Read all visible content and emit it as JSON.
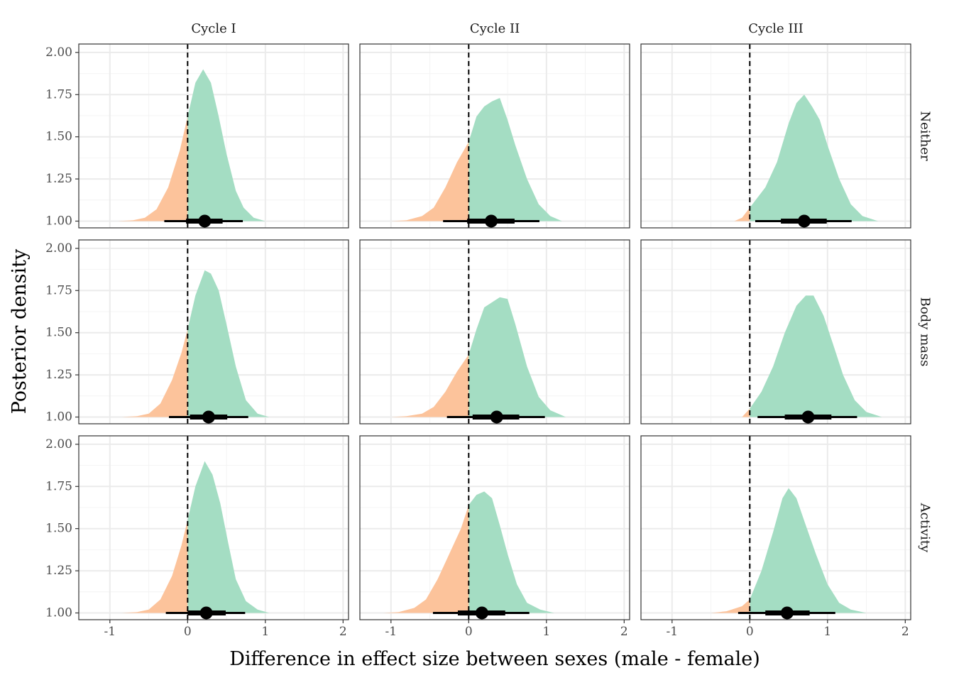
{
  "chart_data": {
    "type": "area",
    "xlabel": "Difference in effect size between sexes (male - female)",
    "ylabel": "Posterior density",
    "xlim": [
      -1.4,
      2.07
    ],
    "ylim": [
      0.96,
      2.05
    ],
    "x_ticks": [
      -1,
      0,
      1,
      2
    ],
    "x_tick_labels": [
      "-1",
      "0",
      "1",
      "2"
    ],
    "y_ticks": [
      1.0,
      1.25,
      1.5,
      1.75,
      2.0
    ],
    "y_tick_labels": [
      "1.00",
      "1.25",
      "1.50",
      "1.75",
      "2.00"
    ],
    "columns": [
      "Cycle I",
      "Cycle II",
      "Cycle III"
    ],
    "rows": [
      "Neither",
      "Body mass",
      "Activity"
    ],
    "reference_line_x": 0,
    "grid": true,
    "colors": {
      "below_zero": "#fcc39b",
      "above_zero": "#a4ddc3",
      "interval": "#000000",
      "panel_border": "#333333",
      "grid_major": "#ebebeb",
      "grid_minor": "#f4f4f4"
    },
    "panels": [
      {
        "column": "Cycle I",
        "row": "Neither",
        "median": 0.22,
        "ci66": [
          -0.02,
          0.45
        ],
        "ci95": [
          -0.3,
          0.71
        ],
        "density": [
          [
            -0.9,
            1.0
          ],
          [
            -0.7,
            1.005
          ],
          [
            -0.55,
            1.02
          ],
          [
            -0.4,
            1.07
          ],
          [
            -0.25,
            1.2
          ],
          [
            -0.1,
            1.42
          ],
          [
            0.0,
            1.62
          ],
          [
            0.1,
            1.82
          ],
          [
            0.2,
            1.9
          ],
          [
            0.3,
            1.82
          ],
          [
            0.4,
            1.62
          ],
          [
            0.5,
            1.4
          ],
          [
            0.62,
            1.18
          ],
          [
            0.72,
            1.08
          ],
          [
            0.85,
            1.02
          ],
          [
            1.0,
            1.0
          ]
        ]
      },
      {
        "column": "Cycle II",
        "row": "Neither",
        "median": 0.29,
        "ci66": [
          -0.02,
          0.59
        ],
        "ci95": [
          -0.33,
          0.91
        ],
        "density": [
          [
            -1.0,
            1.0
          ],
          [
            -0.8,
            1.005
          ],
          [
            -0.6,
            1.03
          ],
          [
            -0.45,
            1.08
          ],
          [
            -0.3,
            1.2
          ],
          [
            -0.15,
            1.35
          ],
          [
            0.0,
            1.47
          ],
          [
            0.1,
            1.62
          ],
          [
            0.2,
            1.68
          ],
          [
            0.3,
            1.71
          ],
          [
            0.4,
            1.73
          ],
          [
            0.5,
            1.6
          ],
          [
            0.6,
            1.45
          ],
          [
            0.75,
            1.25
          ],
          [
            0.9,
            1.1
          ],
          [
            1.05,
            1.03
          ],
          [
            1.2,
            1.0
          ]
        ]
      },
      {
        "column": "Cycle III",
        "row": "Neither",
        "median": 0.7,
        "ci66": [
          0.4,
          0.99
        ],
        "ci95": [
          0.07,
          1.31
        ],
        "density": [
          [
            -0.2,
            1.0
          ],
          [
            -0.1,
            1.02
          ],
          [
            0.0,
            1.08
          ],
          [
            0.2,
            1.2
          ],
          [
            0.35,
            1.35
          ],
          [
            0.5,
            1.58
          ],
          [
            0.6,
            1.7
          ],
          [
            0.7,
            1.75
          ],
          [
            0.8,
            1.68
          ],
          [
            0.9,
            1.6
          ],
          [
            1.0,
            1.45
          ],
          [
            1.15,
            1.25
          ],
          [
            1.3,
            1.1
          ],
          [
            1.45,
            1.03
          ],
          [
            1.65,
            1.0
          ]
        ]
      },
      {
        "column": "Cycle I",
        "row": "Body mass",
        "median": 0.27,
        "ci66": [
          0.03,
          0.51
        ],
        "ci95": [
          -0.24,
          0.78
        ],
        "density": [
          [
            -0.85,
            1.0
          ],
          [
            -0.65,
            1.005
          ],
          [
            -0.5,
            1.02
          ],
          [
            -0.35,
            1.08
          ],
          [
            -0.2,
            1.22
          ],
          [
            -0.08,
            1.38
          ],
          [
            0.0,
            1.52
          ],
          [
            0.1,
            1.72
          ],
          [
            0.22,
            1.87
          ],
          [
            0.3,
            1.85
          ],
          [
            0.4,
            1.75
          ],
          [
            0.5,
            1.55
          ],
          [
            0.62,
            1.3
          ],
          [
            0.75,
            1.1
          ],
          [
            0.9,
            1.02
          ],
          [
            1.05,
            1.0
          ]
        ]
      },
      {
        "column": "Cycle II",
        "row": "Body mass",
        "median": 0.36,
        "ci66": [
          0.05,
          0.65
        ],
        "ci95": [
          -0.28,
          0.98
        ],
        "density": [
          [
            -1.0,
            1.0
          ],
          [
            -0.8,
            1.005
          ],
          [
            -0.6,
            1.02
          ],
          [
            -0.45,
            1.06
          ],
          [
            -0.3,
            1.15
          ],
          [
            -0.15,
            1.27
          ],
          [
            0.0,
            1.37
          ],
          [
            0.1,
            1.52
          ],
          [
            0.2,
            1.65
          ],
          [
            0.3,
            1.68
          ],
          [
            0.4,
            1.71
          ],
          [
            0.5,
            1.7
          ],
          [
            0.6,
            1.55
          ],
          [
            0.75,
            1.3
          ],
          [
            0.9,
            1.12
          ],
          [
            1.05,
            1.04
          ],
          [
            1.25,
            1.0
          ]
        ]
      },
      {
        "column": "Cycle III",
        "row": "Body mass",
        "median": 0.75,
        "ci66": [
          0.45,
          1.05
        ],
        "ci95": [
          0.1,
          1.38
        ],
        "density": [
          [
            -0.1,
            1.0
          ],
          [
            0.0,
            1.05
          ],
          [
            0.15,
            1.15
          ],
          [
            0.3,
            1.3
          ],
          [
            0.45,
            1.5
          ],
          [
            0.6,
            1.66
          ],
          [
            0.72,
            1.72
          ],
          [
            0.82,
            1.72
          ],
          [
            0.95,
            1.6
          ],
          [
            1.08,
            1.42
          ],
          [
            1.2,
            1.25
          ],
          [
            1.35,
            1.1
          ],
          [
            1.5,
            1.03
          ],
          [
            1.7,
            1.0
          ]
        ]
      },
      {
        "column": "Cycle I",
        "row": "Activity",
        "median": 0.24,
        "ci66": [
          0.0,
          0.49
        ],
        "ci95": [
          -0.28,
          0.74
        ],
        "density": [
          [
            -0.85,
            1.0
          ],
          [
            -0.65,
            1.005
          ],
          [
            -0.5,
            1.02
          ],
          [
            -0.35,
            1.08
          ],
          [
            -0.2,
            1.22
          ],
          [
            -0.08,
            1.4
          ],
          [
            0.0,
            1.55
          ],
          [
            0.1,
            1.75
          ],
          [
            0.22,
            1.9
          ],
          [
            0.32,
            1.82
          ],
          [
            0.42,
            1.65
          ],
          [
            0.52,
            1.42
          ],
          [
            0.62,
            1.2
          ],
          [
            0.75,
            1.07
          ],
          [
            0.9,
            1.02
          ],
          [
            1.05,
            1.0
          ]
        ]
      },
      {
        "column": "Cycle II",
        "row": "Activity",
        "median": 0.17,
        "ci66": [
          -0.14,
          0.47
        ],
        "ci95": [
          -0.46,
          0.78
        ],
        "density": [
          [
            -1.1,
            1.0
          ],
          [
            -0.9,
            1.005
          ],
          [
            -0.7,
            1.03
          ],
          [
            -0.55,
            1.08
          ],
          [
            -0.4,
            1.2
          ],
          [
            -0.25,
            1.35
          ],
          [
            -0.1,
            1.5
          ],
          [
            0.0,
            1.64
          ],
          [
            0.1,
            1.7
          ],
          [
            0.2,
            1.72
          ],
          [
            0.3,
            1.68
          ],
          [
            0.4,
            1.52
          ],
          [
            0.5,
            1.35
          ],
          [
            0.62,
            1.17
          ],
          [
            0.75,
            1.06
          ],
          [
            0.92,
            1.02
          ],
          [
            1.1,
            1.0
          ]
        ]
      },
      {
        "column": "Cycle III",
        "row": "Activity",
        "median": 0.48,
        "ci66": [
          0.2,
          0.77
        ],
        "ci95": [
          -0.15,
          1.1
        ],
        "density": [
          [
            -0.5,
            1.0
          ],
          [
            -0.3,
            1.01
          ],
          [
            -0.1,
            1.04
          ],
          [
            0.0,
            1.08
          ],
          [
            0.15,
            1.25
          ],
          [
            0.3,
            1.48
          ],
          [
            0.42,
            1.68
          ],
          [
            0.5,
            1.74
          ],
          [
            0.6,
            1.68
          ],
          [
            0.72,
            1.52
          ],
          [
            0.85,
            1.35
          ],
          [
            1.0,
            1.17
          ],
          [
            1.15,
            1.06
          ],
          [
            1.3,
            1.02
          ],
          [
            1.5,
            1.0
          ]
        ]
      }
    ]
  }
}
